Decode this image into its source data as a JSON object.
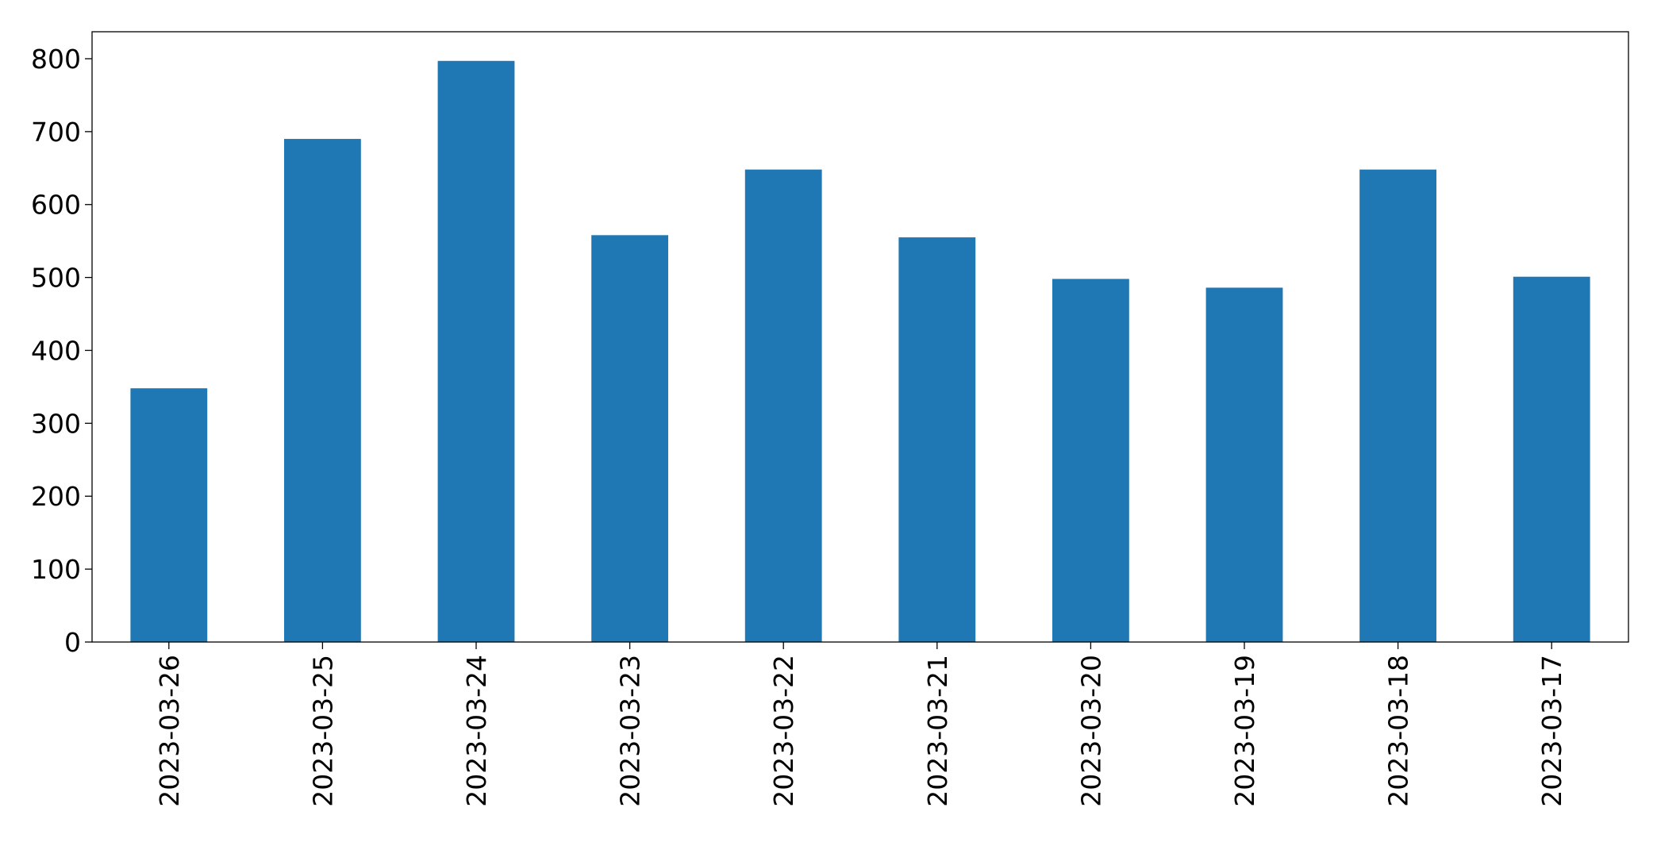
{
  "chart_data": {
    "type": "bar",
    "categories": [
      "2023-03-26",
      "2023-03-25",
      "2023-03-24",
      "2023-03-23",
      "2023-03-22",
      "2023-03-21",
      "2023-03-20",
      "2023-03-19",
      "2023-03-18",
      "2023-03-17"
    ],
    "values": [
      348,
      690,
      797,
      558,
      648,
      555,
      498,
      486,
      648,
      501
    ],
    "color": "#1f77b4",
    "ylim": [
      0,
      837
    ],
    "yticks": [
      0,
      100,
      200,
      300,
      400,
      500,
      600,
      700,
      800
    ],
    "grid": false
  }
}
